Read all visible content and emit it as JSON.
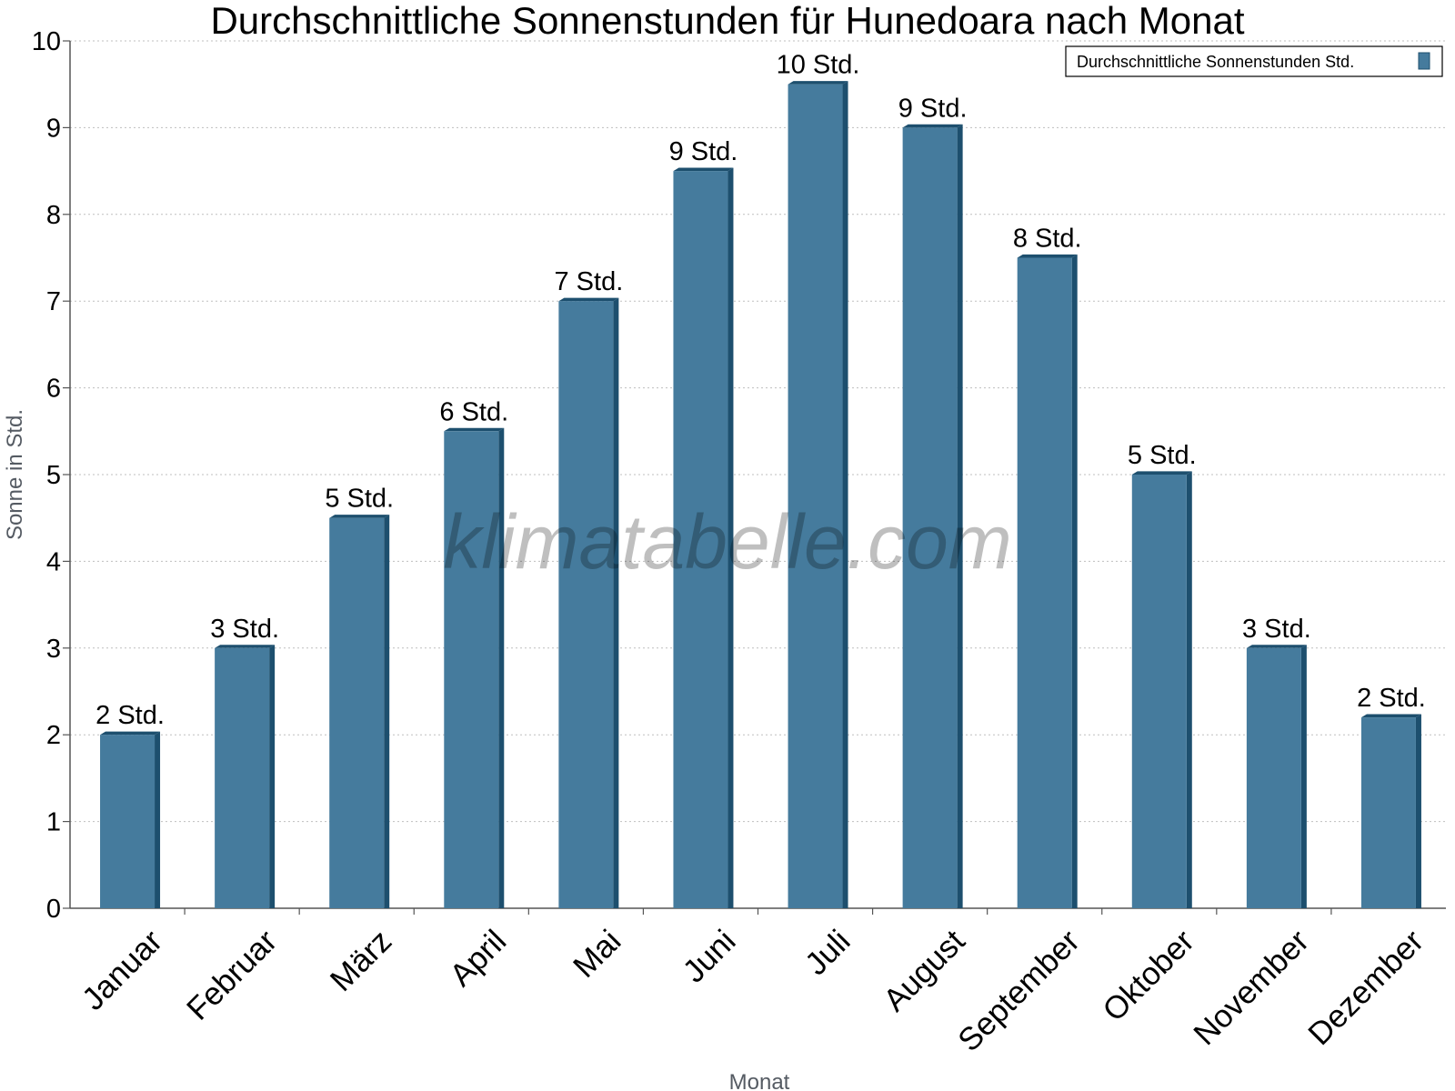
{
  "chart_data": {
    "type": "bar",
    "title": "Durchschnittliche Sonnenstunden für Hunedoara nach Monat",
    "xlabel": "Monat",
    "ylabel": "Sonne in Std.",
    "ylim": [
      0,
      10
    ],
    "yticks": [
      0,
      1,
      2,
      3,
      4,
      5,
      6,
      7,
      8,
      9,
      10
    ],
    "grid": true,
    "legend_position": "top-right",
    "categories": [
      "Januar",
      "Februar",
      "März",
      "April",
      "Mai",
      "Juni",
      "Juli",
      "August",
      "September",
      "Oktober",
      "November",
      "Dezember"
    ],
    "series": [
      {
        "name": "Durchschnittliche Sonnenstunden Std.",
        "values": [
          2.0,
          3.0,
          4.5,
          5.5,
          7.0,
          8.5,
          9.5,
          9.0,
          7.5,
          5.0,
          3.0,
          2.2
        ],
        "data_labels": [
          "2 Std.",
          "3 Std.",
          "5 Std.",
          "6 Std.",
          "7 Std.",
          "9 Std.",
          "10 Std.",
          "9 Std.",
          "8 Std.",
          "5 Std.",
          "3 Std.",
          "2 Std."
        ],
        "color": "#457b9d",
        "side_color": "#1d4f6e"
      }
    ],
    "watermark": "klimatabelle.com"
  }
}
